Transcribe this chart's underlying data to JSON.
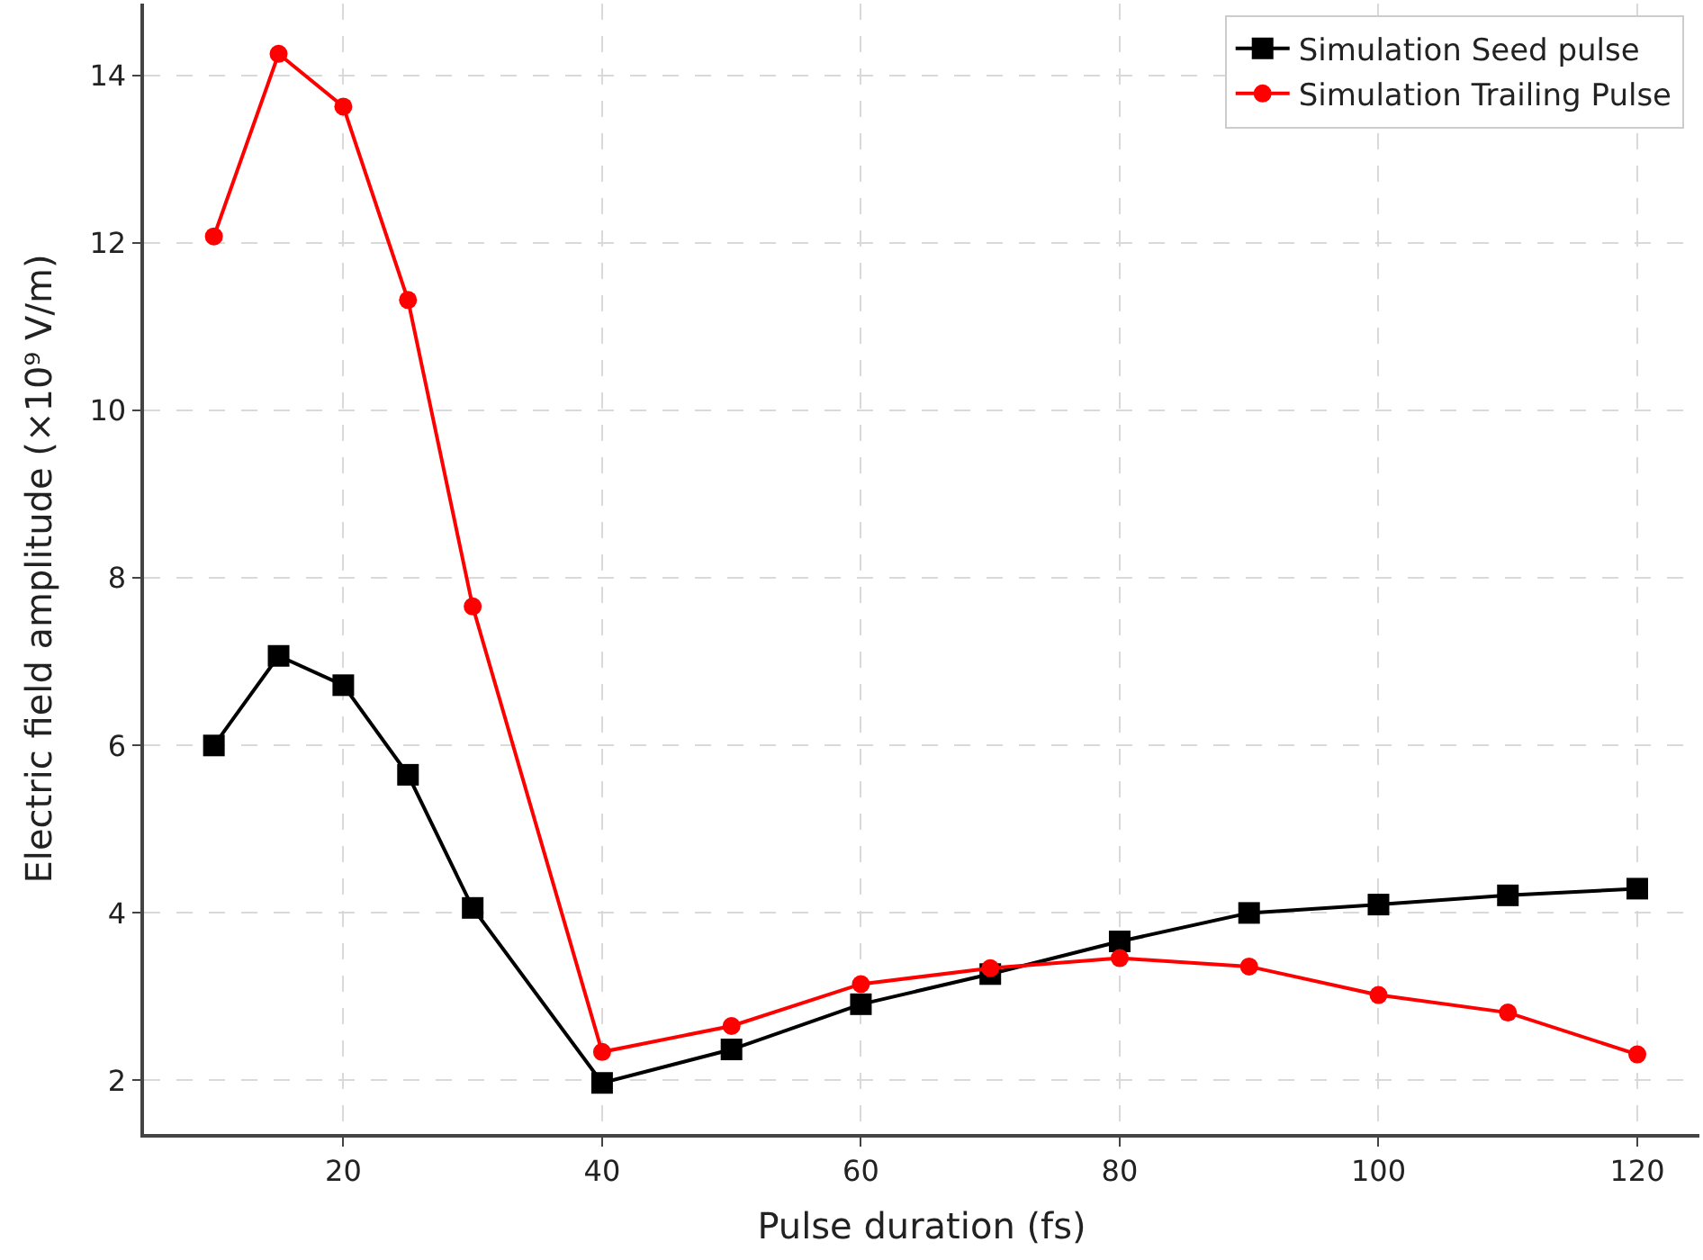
{
  "chart_data": {
    "type": "line",
    "xlabel": "Pulse duration (fs)",
    "ylabel": "Electric field amplitude (×10⁹ V/m)",
    "x": [
      10,
      15,
      20,
      25,
      30,
      40,
      50,
      60,
      70,
      80,
      90,
      100,
      110,
      120
    ],
    "series": [
      {
        "name": "Simulation Seed pulse",
        "color": "#000000",
        "marker": "square",
        "values": [
          6.0,
          7.07,
          6.72,
          5.65,
          4.06,
          1.97,
          2.37,
          2.91,
          3.27,
          3.66,
          4.0,
          4.1,
          4.21,
          4.29
        ]
      },
      {
        "name": "Simulation Trailing Pulse",
        "color": "#ff0000",
        "marker": "circle",
        "values": [
          12.08,
          14.26,
          13.63,
          11.32,
          7.66,
          2.34,
          2.65,
          3.15,
          3.34,
          3.46,
          3.36,
          3.02,
          2.81,
          2.31
        ]
      }
    ],
    "xlim": [
      4.6,
      124.8
    ],
    "ylim": [
      1.36,
      14.86
    ],
    "xticks": [
      20,
      40,
      60,
      80,
      100,
      120
    ],
    "yticks": [
      2,
      4,
      6,
      8,
      10,
      12,
      14
    ],
    "grid": true,
    "legend": "top right",
    "line_style": "solid"
  }
}
